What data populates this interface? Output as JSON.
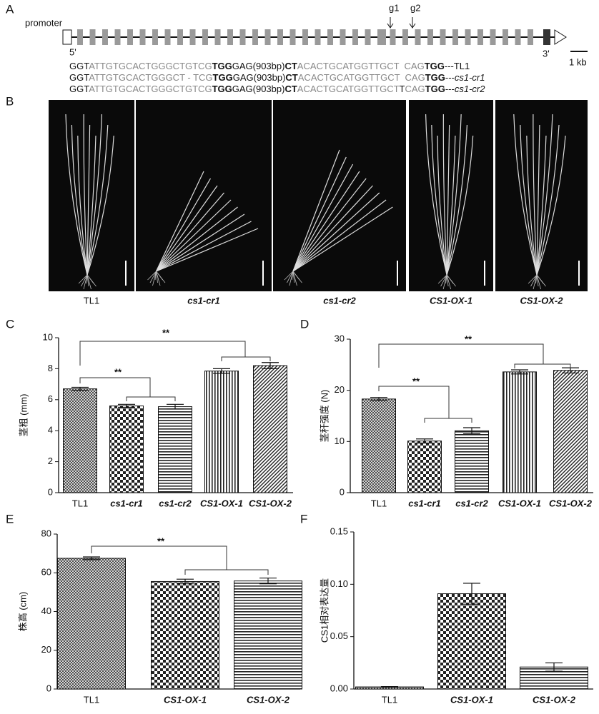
{
  "panel_labels": [
    "A",
    "B",
    "C",
    "D",
    "E",
    "F"
  ],
  "gene": {
    "promoter": "promoter",
    "guides": [
      "g1",
      "g2"
    ],
    "five_prime": "5'",
    "three_prime": "3'",
    "scale_bar": "1 kb",
    "sequences": [
      [
        {
          "text": "GGT",
          "style": "plain"
        },
        {
          "text": "ATTGTGCACTGGGCTGTCG",
          "style": "gray"
        },
        {
          "text": "TGG",
          "style": "bold"
        },
        {
          "text": "GAG(903bp)",
          "style": "plain"
        },
        {
          "text": "CT",
          "style": "bold"
        },
        {
          "text": "ACACTGCATGGTTGCT  CAG",
          "style": "gray"
        },
        {
          "text": "TGG",
          "style": "bold"
        },
        {
          "text": "---TL1",
          "style": "plain"
        }
      ],
      [
        {
          "text": "GGT",
          "style": "plain"
        },
        {
          "text": "ATTGTGCACTGGGCT - TCG",
          "style": "gray"
        },
        {
          "text": "TGG",
          "style": "bold"
        },
        {
          "text": "GAG(903bp)",
          "style": "plain"
        },
        {
          "text": "CT",
          "style": "bold"
        },
        {
          "text": "ACACTGCATGGTTGCT  CAG",
          "style": "gray"
        },
        {
          "text": "TGG",
          "style": "bold"
        },
        {
          "text": "---",
          "style": "plain"
        },
        {
          "text": "cs1-cr1",
          "style": "italic"
        }
      ],
      [
        {
          "text": "GGT",
          "style": "plain"
        },
        {
          "text": "ATTGTGCACTGGGCTGTCG",
          "style": "gray"
        },
        {
          "text": "TGG",
          "style": "bold"
        },
        {
          "text": "GAG(903bp)",
          "style": "plain"
        },
        {
          "text": "CT",
          "style": "bold"
        },
        {
          "text": "ACACTGCATGGTTGCT",
          "style": "gray"
        },
        {
          "text": "T",
          "style": "plain"
        },
        {
          "text": "CAG",
          "style": "gray"
        },
        {
          "text": "TGG",
          "style": "bold"
        },
        {
          "text": "---",
          "style": "plain"
        },
        {
          "text": "cs1-cr2",
          "style": "italic"
        }
      ]
    ]
  },
  "photos": {
    "labels": [
      "TL1",
      "cs1-cr1",
      "cs1-cr2",
      "CS1-OX-1",
      "CS1-OX-2"
    ]
  },
  "chart_data": [
    {
      "type": "bar",
      "ylabel": "茎粗 (mm)",
      "categories": [
        "TL1",
        "cs1-cr1",
        "cs1-cr2",
        "CS1-OX-1",
        "CS1-OX-2"
      ],
      "values": [
        6.7,
        5.6,
        5.55,
        7.85,
        8.2
      ],
      "errors": [
        0.1,
        0.1,
        0.15,
        0.15,
        0.2
      ],
      "patterns": [
        "crosshatch",
        "checker",
        "hlines",
        "vlines",
        "diag"
      ],
      "ylim": [
        0,
        10
      ],
      "yticks": [
        0,
        2,
        4,
        6,
        8,
        10
      ],
      "annotations": [
        "**",
        "**"
      ]
    },
    {
      "type": "bar",
      "ylabel": "茎秆强度 (N)",
      "categories": [
        "TL1",
        "cs1-cr1",
        "cs1-cr2",
        "CS1-OX-1",
        "CS1-OX-2"
      ],
      "values": [
        18.3,
        10.1,
        12.1,
        23.6,
        23.9
      ],
      "errors": [
        0.3,
        0.4,
        0.6,
        0.4,
        0.5
      ],
      "patterns": [
        "crosshatch",
        "checker",
        "hlines",
        "vlines",
        "diag"
      ],
      "ylim": [
        0,
        30
      ],
      "yticks": [
        0,
        10,
        20,
        30
      ],
      "annotations": [
        "**",
        "**"
      ]
    },
    {
      "type": "bar",
      "ylabel": "株高 (cm)",
      "categories": [
        "TL1",
        "CS1-OX-1",
        "CS1-OX-2"
      ],
      "values": [
        67.5,
        55.5,
        55.8
      ],
      "errors": [
        0.7,
        1.2,
        1.5
      ],
      "patterns": [
        "crosshatch",
        "checker",
        "hlines"
      ],
      "ylim": [
        0,
        80
      ],
      "yticks": [
        0,
        20,
        40,
        60,
        80
      ],
      "annotations": [
        "**"
      ]
    },
    {
      "type": "bar",
      "ylabel": "CS1相对表达量",
      "categories": [
        "TL1",
        "CS1-OX-1",
        "CS1-OX-2"
      ],
      "values": [
        0.002,
        0.091,
        0.021
      ],
      "errors": [
        0.0003,
        0.01,
        0.004
      ],
      "patterns": [
        "crosshatch",
        "checker",
        "hlines"
      ],
      "ylim": [
        0,
        0.15
      ],
      "yticks": [
        {
          "value": 0,
          "label": "0.00"
        },
        {
          "value": 0.05,
          "label": "0.05"
        },
        {
          "value": 0.1,
          "label": "0.10"
        },
        {
          "value": 0.15,
          "label": "0.15"
        }
      ],
      "annotations": []
    }
  ]
}
